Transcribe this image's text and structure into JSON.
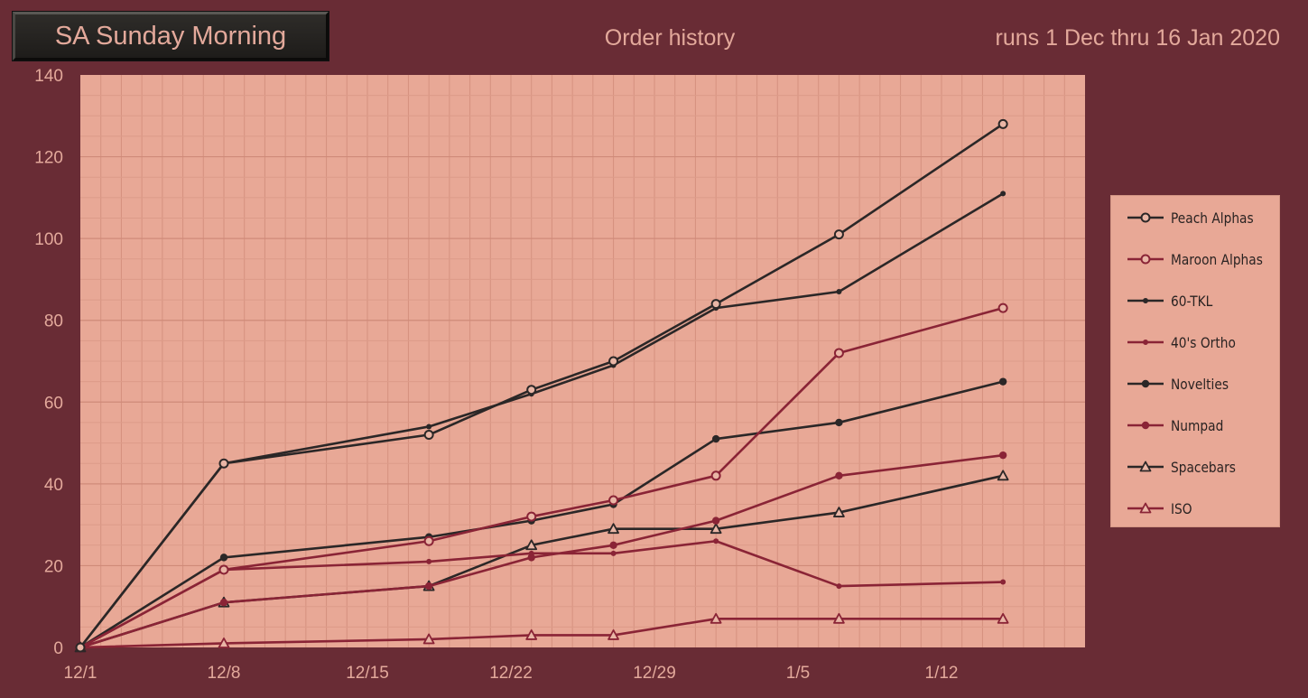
{
  "header": {
    "badge": "SA Sunday Morning",
    "title": "Order history",
    "subtitle": "runs 1 Dec thru 16 Jan 2020"
  },
  "colors": {
    "background": "#692c35",
    "plot_area": "#e8a896",
    "text": "#e3a99b",
    "dark_series": "#2b2727",
    "maroon_series": "#8a2436"
  },
  "chart_data": {
    "type": "line",
    "x_axis": {
      "type": "date",
      "range": [
        "12/1",
        "1/19"
      ],
      "ticks": [
        {
          "label": "12/1",
          "date": "2019-12-01"
        },
        {
          "label": "12/8",
          "date": "2019-12-08"
        },
        {
          "label": "12/15",
          "date": "2019-12-15"
        },
        {
          "label": "12/22",
          "date": "2019-12-22"
        },
        {
          "label": "12/29",
          "date": "2019-12-29"
        },
        {
          "label": "1/5",
          "date": "2020-01-05"
        },
        {
          "label": "1/12",
          "date": "2020-01-12"
        }
      ]
    },
    "y_axis": {
      "range": [
        0,
        140
      ],
      "ticks": [
        0,
        20,
        40,
        60,
        80,
        100,
        120,
        140
      ]
    },
    "grid": true,
    "legend_position": "right",
    "x": [
      "2019-12-01",
      "2019-12-08",
      "2019-12-18",
      "2019-12-23",
      "2019-12-27",
      "2020-01-01",
      "2020-01-07",
      "2020-01-15"
    ],
    "series": [
      {
        "name": "Peach Alphas",
        "values": [
          0,
          45,
          52,
          63,
          70,
          84,
          101,
          128
        ],
        "color": "#2b2727",
        "marker": "open-circle"
      },
      {
        "name": "Maroon Alphas",
        "values": [
          0,
          19,
          26,
          32,
          36,
          42,
          72,
          83
        ],
        "color": "#8a2436",
        "marker": "open-circle"
      },
      {
        "name": "60-TKL",
        "values": [
          0,
          45,
          54,
          62,
          69,
          83,
          87,
          111
        ],
        "color": "#2b2727",
        "marker": "small-dot"
      },
      {
        "name": "40's Ortho",
        "values": [
          0,
          19,
          21,
          23,
          23,
          26,
          15,
          16
        ],
        "color": "#8a2436",
        "marker": "small-dot"
      },
      {
        "name": "Novelties",
        "values": [
          0,
          22,
          27,
          31,
          35,
          51,
          55,
          65
        ],
        "color": "#2b2727",
        "marker": "dot"
      },
      {
        "name": "Numpad",
        "values": [
          0,
          11,
          15,
          22,
          25,
          31,
          42,
          47
        ],
        "color": "#8a2436",
        "marker": "dot"
      },
      {
        "name": "Spacebars",
        "values": [
          0,
          11,
          15,
          25,
          29,
          29,
          33,
          42
        ],
        "color": "#2b2727",
        "marker": "open-triangle"
      },
      {
        "name": "ISO",
        "values": [
          0,
          1,
          2,
          3,
          3,
          7,
          7,
          7
        ],
        "color": "#8a2436",
        "marker": "open-triangle"
      }
    ]
  }
}
